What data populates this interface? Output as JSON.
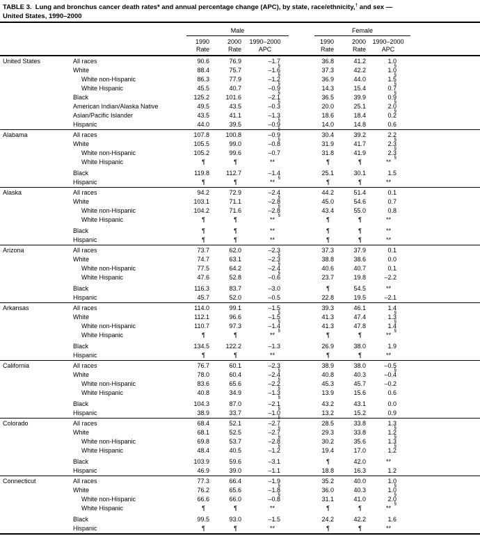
{
  "title": {
    "part1": "TABLE 3.  Lung and bronchus cancer death rates* and annual percentage change (APC), by state, race/ethnicity,",
    "dagger": "†",
    "part2": " and sex —",
    "line2": "United States, 1990–2000"
  },
  "table": {
    "header": {
      "male": "Male",
      "female": "Female",
      "y1990": "1990",
      "y2000": "2000",
      "range": "1990–2000",
      "rate": "Rate",
      "apc": "APC"
    },
    "footnote_symbols": {
      "suppressed_rate": "¶",
      "suppressed_apc": "**",
      "significant": "§"
    },
    "states": [
      {
        "name": "United States",
        "rows": [
          {
            "race": "All races",
            "indent": false,
            "gap": false,
            "cells": [
              "90.6",
              "76.9",
              "–1.7§",
              "36.8",
              "41.2",
              "1.0§"
            ]
          },
          {
            "race": "White",
            "indent": false,
            "gap": false,
            "cells": [
              "88.4",
              "75.7",
              "–1.6§",
              "37.3",
              "42.2",
              "1.0§"
            ]
          },
          {
            "race": "White non-Hispanic",
            "indent": true,
            "gap": false,
            "cells": [
              "86.3",
              "77.9",
              "–1.2§",
              "36.9",
              "44.0",
              "1.5§"
            ]
          },
          {
            "race": "White Hispanic",
            "indent": true,
            "gap": false,
            "cells": [
              "45.5",
              "40.7",
              "–0.9§",
              "14.3",
              "15.4",
              "0.7§"
            ]
          },
          {
            "race": "Black",
            "indent": false,
            "gap": false,
            "cells": [
              "125.2",
              "101.6",
              "–2.1§",
              "36.5",
              "39.9",
              "0.9§"
            ]
          },
          {
            "race": "American Indian/Alaska Native",
            "indent": false,
            "gap": false,
            "cells": [
              "49.5",
              "43.5",
              "–0.3",
              "20.0",
              "25.1",
              "2.0§"
            ]
          },
          {
            "race": "Asian/Pacific Islander",
            "indent": false,
            "gap": false,
            "cells": [
              "43.5",
              "41.1",
              "–1.3§",
              "18.6",
              "18.4",
              "0.2"
            ]
          },
          {
            "race": "Hispanic",
            "indent": false,
            "gap": false,
            "cells": [
              "44.0",
              "39.5",
              "–0.9§",
              "14.0",
              "14.8",
              "0.6"
            ]
          }
        ]
      },
      {
        "name": "Alabama",
        "rows": [
          {
            "race": "All races",
            "indent": false,
            "gap": false,
            "cells": [
              "107.8",
              "100.8",
              "–0.9§",
              "30.4",
              "39.2",
              "2.2§"
            ]
          },
          {
            "race": "White",
            "indent": false,
            "gap": false,
            "cells": [
              "105.5",
              "99.0",
              "–0.8",
              "31.9",
              "41.7",
              "2.3§"
            ]
          },
          {
            "race": "White non-Hispanic",
            "indent": true,
            "gap": false,
            "cells": [
              "105.2",
              "99.6",
              "–0.7",
              "31.8",
              "41.9",
              "2.3§"
            ]
          },
          {
            "race": "White Hispanic",
            "indent": true,
            "gap": false,
            "cells": [
              "¶",
              "¶",
              "**",
              "¶",
              "¶",
              "**"
            ]
          },
          {
            "race": "Black",
            "indent": false,
            "gap": true,
            "cells": [
              "119.8",
              "112.7",
              "–1.4§",
              "25.1",
              "30.1",
              "1.5"
            ]
          },
          {
            "race": "Hispanic",
            "indent": false,
            "gap": false,
            "cells": [
              "¶",
              "¶",
              "**",
              "¶",
              "¶",
              "**"
            ]
          }
        ]
      },
      {
        "name": "Alaska",
        "rows": [
          {
            "race": "All races",
            "indent": false,
            "gap": false,
            "cells": [
              "94.2",
              "72.9",
              "–2.4§",
              "44.2",
              "51.4",
              "0.1"
            ]
          },
          {
            "race": "White",
            "indent": false,
            "gap": false,
            "cells": [
              "103.1",
              "71.1",
              "–2.8§",
              "45.0",
              "54.6",
              "0.7"
            ]
          },
          {
            "race": "White non-Hispanic",
            "indent": true,
            "gap": false,
            "cells": [
              "104.2",
              "71.6",
              "–2.8§",
              "43.4",
              "55.0",
              "0.8"
            ]
          },
          {
            "race": "White Hispanic",
            "indent": true,
            "gap": false,
            "cells": [
              "¶",
              "¶",
              "**",
              "¶",
              "¶",
              "**"
            ]
          },
          {
            "race": "Black",
            "indent": false,
            "gap": true,
            "cells": [
              "¶",
              "¶",
              "**",
              "¶",
              "¶",
              "**"
            ]
          },
          {
            "race": "Hispanic",
            "indent": false,
            "gap": false,
            "cells": [
              "¶",
              "¶",
              "**",
              "¶",
              "¶",
              "**"
            ]
          }
        ]
      },
      {
        "name": "Arizona",
        "rows": [
          {
            "race": "All races",
            "indent": false,
            "gap": false,
            "cells": [
              "73.7",
              "62.0",
              "–2.3§",
              "37.3",
              "37.9",
              "0.1"
            ]
          },
          {
            "race": "White",
            "indent": false,
            "gap": false,
            "cells": [
              "74.7",
              "63.1",
              "–2.3§",
              "38.8",
              "38.6",
              "0.0"
            ]
          },
          {
            "race": "White non-Hispanic",
            "indent": true,
            "gap": false,
            "cells": [
              "77.5",
              "64.2",
              "–2.4§",
              "40.6",
              "40.7",
              "0.1"
            ]
          },
          {
            "race": "White Hispanic",
            "indent": true,
            "gap": false,
            "cells": [
              "47.6",
              "52.8",
              "–0.6",
              "23.7",
              "19.8",
              "–2.2"
            ]
          },
          {
            "race": "Black",
            "indent": false,
            "gap": true,
            "cells": [
              "116.3",
              "83.7",
              "–3.0",
              "¶",
              "54.5",
              "**"
            ]
          },
          {
            "race": "Hispanic",
            "indent": false,
            "gap": false,
            "cells": [
              "45.7",
              "52.0",
              "–0.5",
              "22.8",
              "19.5",
              "–2.1"
            ]
          }
        ]
      },
      {
        "name": "Arkansas",
        "rows": [
          {
            "race": "All races",
            "indent": false,
            "gap": false,
            "cells": [
              "114.0",
              "99.1",
              "–1.5§",
              "39.3",
              "46.1",
              "1.4§"
            ]
          },
          {
            "race": "White",
            "indent": false,
            "gap": false,
            "cells": [
              "112.1",
              "96.6",
              "–1.5§",
              "41.3",
              "47.4",
              "1.3§"
            ]
          },
          {
            "race": "White non-Hispanic",
            "indent": true,
            "gap": false,
            "cells": [
              "110.7",
              "97.3",
              "–1.4§",
              "41.3",
              "47.8",
              "1.4§"
            ]
          },
          {
            "race": "White Hispanic",
            "indent": true,
            "gap": false,
            "cells": [
              "¶",
              "¶",
              "**",
              "¶",
              "¶",
              "**"
            ]
          },
          {
            "race": "Black",
            "indent": false,
            "gap": true,
            "cells": [
              "134.5",
              "122.2",
              "–1.3",
              "26.9",
              "38.0",
              "1.9"
            ]
          },
          {
            "race": "Hispanic",
            "indent": false,
            "gap": false,
            "cells": [
              "¶",
              "¶",
              "**",
              "¶",
              "¶",
              "**"
            ]
          }
        ]
      },
      {
        "name": "California",
        "rows": [
          {
            "race": "All races",
            "indent": false,
            "gap": false,
            "cells": [
              "76.7",
              "60.1",
              "–2.3§",
              "38.9",
              "38.0",
              "–0.5§"
            ]
          },
          {
            "race": "White",
            "indent": false,
            "gap": false,
            "cells": [
              "78.0",
              "60.4",
              "–2.4§",
              "40.8",
              "40.3",
              "–0.4"
            ]
          },
          {
            "race": "White non-Hispanic",
            "indent": true,
            "gap": false,
            "cells": [
              "83.6",
              "65.6",
              "–2.2§",
              "45.3",
              "45.7",
              "–0.2"
            ]
          },
          {
            "race": "White Hispanic",
            "indent": true,
            "gap": false,
            "cells": [
              "40.8",
              "34.9",
              "–1.3§",
              "13.9",
              "15.6",
              "0.6"
            ]
          },
          {
            "race": "Black",
            "indent": false,
            "gap": true,
            "cells": [
              "104.3",
              "87.0",
              "–2.1§",
              "43.2",
              "43.1",
              "0.0"
            ]
          },
          {
            "race": "Hispanic",
            "indent": false,
            "gap": false,
            "cells": [
              "38.9",
              "33.7",
              "–1.0§",
              "13.2",
              "15.2",
              "0.9"
            ]
          }
        ]
      },
      {
        "name": "Colorado",
        "rows": [
          {
            "race": "All races",
            "indent": false,
            "gap": false,
            "cells": [
              "68.4",
              "52.1",
              "–2.7§",
              "28.5",
              "33.8",
              "1.3§"
            ]
          },
          {
            "race": "White",
            "indent": false,
            "gap": false,
            "cells": [
              "68.1",
              "52.5",
              "–2.7§",
              "29.3",
              "33.8",
              "1.2§"
            ]
          },
          {
            "race": "White non-Hispanic",
            "indent": true,
            "gap": false,
            "cells": [
              "69.8",
              "53.7",
              "–2.8§",
              "30.2",
              "35.6",
              "1.3§"
            ]
          },
          {
            "race": "White Hispanic",
            "indent": true,
            "gap": false,
            "cells": [
              "48.4",
              "40.5",
              "–1.2",
              "19.4",
              "17.0",
              "1.2"
            ]
          },
          {
            "race": "Black",
            "indent": false,
            "gap": true,
            "cells": [
              "103.9",
              "59.6",
              "–3.1",
              "¶",
              "42.0",
              "**"
            ]
          },
          {
            "race": "Hispanic",
            "indent": false,
            "gap": false,
            "cells": [
              "46.9",
              "39.0",
              "–1.1",
              "18.8",
              "16.3",
              "1.2"
            ]
          }
        ]
      },
      {
        "name": "Connecticut",
        "rows": [
          {
            "race": "All races",
            "indent": false,
            "gap": false,
            "cells": [
              "77.3",
              "66.4",
              "–1.9§",
              "35.2",
              "40.0",
              "1.0§"
            ]
          },
          {
            "race": "White",
            "indent": false,
            "gap": false,
            "cells": [
              "76.2",
              "65.6",
              "–1.8§",
              "36.0",
              "40.3",
              "1.0§"
            ]
          },
          {
            "race": "White non-Hispanic",
            "indent": true,
            "gap": false,
            "cells": [
              "66.6",
              "66.0",
              "–0.8",
              "31.1",
              "41.0",
              "2.0§"
            ]
          },
          {
            "race": "White Hispanic",
            "indent": true,
            "gap": false,
            "cells": [
              "¶",
              "¶",
              "**",
              "¶",
              "¶",
              "**"
            ]
          },
          {
            "race": "Black",
            "indent": false,
            "gap": true,
            "cells": [
              "99.5",
              "93.0",
              "–1.5",
              "24.2",
              "42.2",
              "1.6"
            ]
          },
          {
            "race": "Hispanic",
            "indent": false,
            "gap": false,
            "cells": [
              "¶",
              "¶",
              "**",
              "¶",
              "¶",
              "**"
            ]
          }
        ]
      }
    ]
  }
}
